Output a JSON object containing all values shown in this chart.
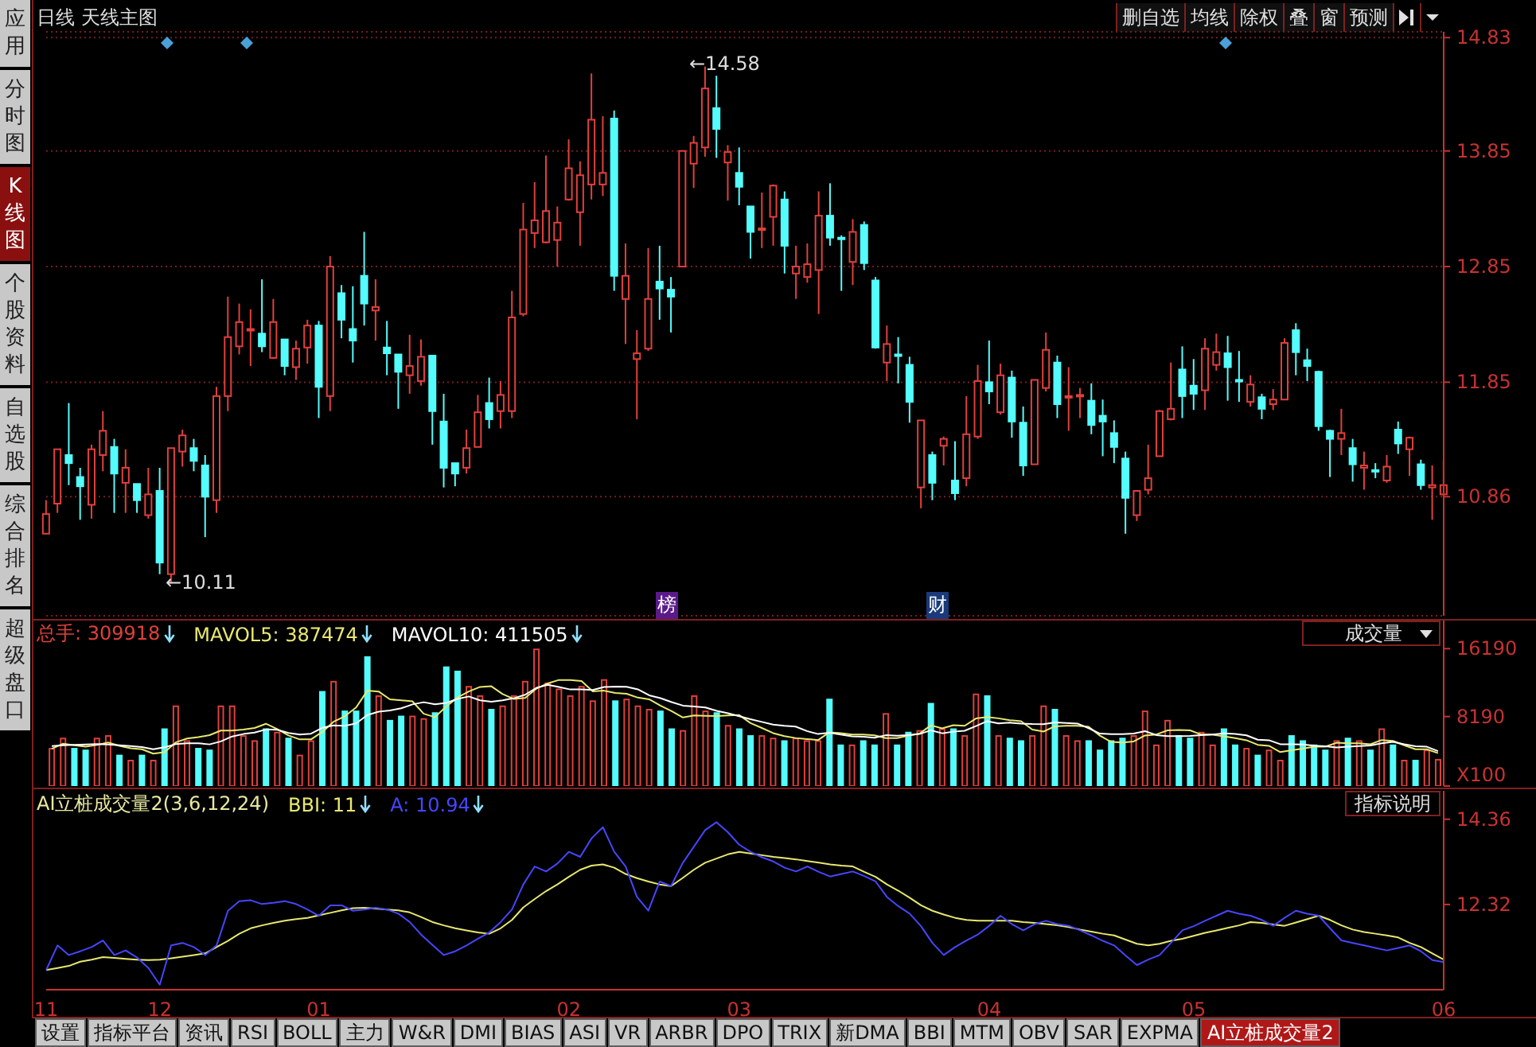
{
  "chart_data": [
    {
      "type": "other",
      "annotations": [
        "应用",
        "分时图",
        "K线图",
        "个股资料",
        "自选股",
        "综合排名",
        "超级盘口"
      ]
    },
    {
      "type": "other",
      "annotations": [
        "删自选",
        "均线",
        "除权",
        "叠",
        "窗",
        "预测"
      ]
    },
    {
      "type": "candlestick",
      "title": "日线 天线主图",
      "categories": [
        "11",
        null,
        null,
        null,
        null,
        null,
        null,
        null,
        null,
        null,
        "12",
        null,
        null,
        null,
        null,
        null,
        null,
        null,
        null,
        null,
        null,
        null,
        null,
        null,
        "01",
        null,
        null,
        null,
        null,
        null,
        null,
        null,
        null,
        null,
        null,
        null,
        null,
        null,
        null,
        null,
        null,
        null,
        null,
        null,
        null,
        null,
        "02",
        null,
        null,
        null,
        null,
        null,
        null,
        null,
        null,
        null,
        null,
        null,
        null,
        null,
        null,
        "03",
        null,
        null,
        null,
        null,
        null,
        null,
        null,
        null,
        null,
        null,
        null,
        null,
        null,
        null,
        null,
        null,
        null,
        null,
        null,
        null,
        null,
        "04",
        null,
        null,
        null,
        null,
        null,
        null,
        null,
        null,
        null,
        null,
        null,
        null,
        null,
        null,
        null,
        null,
        null,
        "05",
        null,
        null,
        null,
        null,
        null,
        null,
        null,
        null,
        null,
        null,
        null,
        null,
        null,
        null,
        null,
        null,
        null,
        null,
        null,
        null,
        null,
        "06"
      ],
      "ohlc": [
        [
          10.54,
          10.83,
          10.54,
          10.71
        ],
        [
          10.8,
          11.27,
          10.72,
          11.27
        ],
        [
          11.22,
          11.67,
          10.96,
          11.15
        ],
        [
          11.03,
          11.11,
          10.66,
          10.95
        ],
        [
          10.79,
          11.31,
          10.67,
          11.27
        ],
        [
          11.22,
          11.6,
          11.08,
          11.43
        ],
        [
          11.29,
          11.36,
          10.72,
          11.06
        ],
        [
          10.98,
          11.27,
          10.72,
          11.11
        ],
        [
          10.97,
          10.97,
          10.72,
          10.83
        ],
        [
          10.7,
          11.11,
          10.67,
          10.88
        ],
        [
          10.91,
          11.11,
          10.19,
          10.29
        ],
        [
          10.19,
          11.28,
          10.11,
          11.28
        ],
        [
          11.25,
          11.44,
          11.12,
          11.39
        ],
        [
          11.28,
          11.36,
          11.08,
          11.17
        ],
        [
          11.13,
          11.22,
          10.51,
          10.86
        ],
        [
          10.83,
          11.81,
          10.72,
          11.73
        ],
        [
          11.73,
          12.59,
          11.6,
          12.24
        ],
        [
          12.16,
          12.53,
          12.09,
          12.37
        ],
        [
          12.31,
          12.48,
          11.99,
          12.31
        ],
        [
          12.27,
          12.74,
          12.11,
          12.16
        ],
        [
          12.06,
          12.57,
          12.05,
          12.37
        ],
        [
          12.22,
          12.22,
          11.91,
          11.99
        ],
        [
          11.98,
          12.21,
          11.87,
          12.14
        ],
        [
          12.15,
          12.39,
          12.01,
          12.34
        ],
        [
          12.34,
          12.38,
          11.54,
          11.81
        ],
        [
          11.73,
          12.94,
          11.6,
          12.85
        ],
        [
          12.62,
          12.69,
          12.23,
          12.39
        ],
        [
          12.31,
          12.68,
          12.02,
          12.21
        ],
        [
          12.77,
          13.15,
          12.34,
          12.53
        ],
        [
          12.47,
          12.74,
          12.21,
          12.5
        ],
        [
          12.15,
          12.38,
          11.91,
          12.1
        ],
        [
          12.09,
          12.09,
          11.62,
          11.94
        ],
        [
          11.91,
          12.26,
          11.75,
          11.99
        ],
        [
          11.86,
          12.22,
          11.82,
          12.07
        ],
        [
          12.08,
          12.08,
          11.31,
          11.6
        ],
        [
          11.51,
          11.75,
          10.94,
          11.11
        ],
        [
          11.15,
          11.15,
          10.95,
          11.06
        ],
        [
          11.11,
          11.44,
          11.06,
          11.28
        ],
        [
          11.29,
          11.74,
          11.29,
          11.59
        ],
        [
          11.67,
          11.89,
          11.45,
          11.53
        ],
        [
          11.6,
          11.86,
          11.45,
          11.74
        ],
        [
          11.6,
          12.64,
          11.54,
          12.41
        ],
        [
          12.44,
          13.4,
          12.42,
          13.17
        ],
        [
          13.14,
          13.58,
          13.01,
          13.25
        ],
        [
          13.06,
          13.81,
          13.05,
          13.33
        ],
        [
          13.08,
          13.37,
          12.85,
          13.23
        ],
        [
          13.43,
          13.95,
          13.42,
          13.7
        ],
        [
          13.32,
          13.76,
          13.03,
          13.64
        ],
        [
          13.56,
          14.52,
          13.43,
          14.12
        ],
        [
          13.56,
          14.15,
          13.46,
          13.66
        ],
        [
          14.13,
          14.2,
          12.64,
          12.77
        ],
        [
          12.57,
          13.05,
          12.18,
          12.77
        ],
        [
          12.05,
          12.3,
          11.53,
          12.1
        ],
        [
          12.14,
          13.01,
          12.12,
          12.57
        ],
        [
          12.72,
          13.03,
          12.39,
          12.66
        ],
        [
          12.65,
          12.76,
          12.28,
          12.59
        ],
        [
          12.85,
          13.85,
          12.85,
          13.85
        ],
        [
          13.74,
          13.98,
          13.53,
          13.92
        ],
        [
          13.88,
          14.58,
          13.8,
          14.39
        ],
        [
          14.22,
          14.5,
          13.79,
          14.04
        ],
        [
          13.75,
          13.9,
          13.42,
          13.84
        ],
        [
          13.66,
          13.88,
          13.38,
          13.54
        ],
        [
          13.37,
          13.37,
          12.92,
          13.15
        ],
        [
          13.18,
          13.49,
          13.01,
          13.18
        ],
        [
          13.28,
          13.56,
          13.03,
          13.55
        ],
        [
          13.43,
          13.5,
          12.79,
          13.03
        ],
        [
          12.79,
          13.03,
          12.57,
          12.85
        ],
        [
          12.76,
          13.05,
          12.71,
          12.87
        ],
        [
          12.82,
          13.5,
          12.44,
          13.29
        ],
        [
          13.29,
          13.57,
          13.03,
          13.1
        ],
        [
          13.1,
          13.12,
          12.64,
          13.09
        ],
        [
          12.89,
          13.26,
          12.69,
          13.15
        ],
        [
          13.21,
          13.24,
          12.82,
          12.88
        ],
        [
          12.73,
          12.76,
          12.14,
          12.15
        ],
        [
          12.02,
          12.34,
          11.86,
          12.18
        ],
        [
          12.09,
          12.24,
          11.84,
          12.08
        ],
        [
          12.0,
          12.07,
          11.5,
          11.68
        ],
        [
          10.94,
          11.52,
          10.76,
          11.52
        ],
        [
          11.22,
          11.25,
          10.83,
          10.98
        ],
        [
          11.3,
          11.38,
          11.13,
          11.36
        ],
        [
          11.0,
          11.34,
          10.83,
          10.89
        ],
        [
          11.02,
          11.73,
          10.95,
          11.4
        ],
        [
          11.38,
          12.0,
          11.36,
          11.86
        ],
        [
          11.85,
          12.21,
          11.66,
          11.77
        ],
        [
          11.59,
          12.01,
          11.57,
          11.91
        ],
        [
          11.89,
          11.95,
          11.37,
          11.51
        ],
        [
          11.5,
          11.64,
          11.04,
          11.13
        ],
        [
          11.14,
          11.87,
          11.14,
          11.87
        ],
        [
          11.8,
          12.28,
          11.77,
          12.13
        ],
        [
          12.02,
          12.08,
          11.54,
          11.66
        ],
        [
          11.72,
          11.98,
          11.43,
          11.73
        ],
        [
          11.73,
          11.8,
          11.54,
          11.74
        ],
        [
          11.69,
          11.84,
          11.4,
          11.48
        ],
        [
          11.56,
          11.7,
          11.21,
          11.51
        ],
        [
          11.41,
          11.52,
          11.15,
          11.29
        ],
        [
          11.19,
          11.25,
          10.54,
          10.85
        ],
        [
          10.7,
          10.91,
          10.65,
          10.91
        ],
        [
          10.92,
          11.31,
          10.88,
          11.02
        ],
        [
          11.21,
          11.61,
          11.21,
          11.6
        ],
        [
          11.53,
          12.02,
          11.52,
          11.62
        ],
        [
          11.96,
          12.16,
          11.54,
          11.73
        ],
        [
          11.82,
          12.05,
          11.61,
          11.75
        ],
        [
          11.78,
          12.23,
          11.61,
          12.14
        ],
        [
          12.0,
          12.27,
          11.95,
          12.11
        ],
        [
          12.1,
          12.25,
          11.69,
          11.98
        ],
        [
          11.87,
          12.12,
          11.68,
          11.86
        ],
        [
          11.68,
          11.91,
          11.64,
          11.83
        ],
        [
          11.72,
          11.75,
          11.53,
          11.62
        ],
        [
          11.66,
          11.79,
          11.61,
          11.7
        ],
        [
          11.7,
          12.23,
          11.7,
          12.19
        ],
        [
          12.3,
          12.36,
          11.91,
          12.11
        ],
        [
          12.04,
          12.14,
          11.86,
          11.99
        ],
        [
          11.94,
          11.95,
          11.43,
          11.47
        ],
        [
          11.43,
          11.44,
          11.03,
          11.36
        ],
        [
          11.36,
          11.62,
          11.22,
          11.41
        ],
        [
          11.28,
          11.36,
          10.99,
          11.14
        ],
        [
          11.11,
          11.25,
          10.92,
          11.13
        ],
        [
          11.09,
          11.15,
          11.02,
          11.08
        ],
        [
          11.0,
          11.22,
          10.98,
          11.12
        ],
        [
          11.44,
          11.51,
          11.23,
          11.32
        ],
        [
          11.27,
          11.38,
          11.04,
          11.37
        ],
        [
          11.14,
          11.18,
          10.92,
          10.96
        ],
        [
          10.94,
          11.13,
          10.66,
          10.96
        ],
        [
          10.88,
          11.18,
          10.86,
          10.96
        ]
      ],
      "colors": [
        "#e0403c",
        "#e0403c",
        "#54fcfc",
        "#54fcfc",
        "#e0403c",
        "#e0403c",
        "#54fcfc",
        "#e0403c",
        "#54fcfc",
        "#e0403c",
        "#54fcfc",
        "#e0403c",
        "#e0403c",
        "#54fcfc",
        "#54fcfc",
        "#e0403c",
        "#e0403c",
        "#e0403c",
        "#e0403c",
        "#54fcfc",
        "#e0403c",
        "#54fcfc",
        "#e0403c",
        "#e0403c",
        "#54fcfc",
        "#e0403c",
        "#54fcfc",
        "#54fcfc",
        "#54fcfc",
        "#e0403c",
        "#54fcfc",
        "#54fcfc",
        "#e0403c",
        "#e0403c",
        "#54fcfc",
        "#54fcfc",
        "#54fcfc",
        "#e0403c",
        "#e0403c",
        "#54fcfc",
        "#e0403c",
        "#e0403c",
        "#e0403c",
        "#e0403c",
        "#e0403c",
        "#e0403c",
        "#e0403c",
        "#e0403c",
        "#e0403c",
        "#e0403c",
        "#54fcfc",
        "#e0403c",
        "#e0403c",
        "#e0403c",
        "#54fcfc",
        "#54fcfc",
        "#e0403c",
        "#e0403c",
        "#e0403c",
        "#54fcfc",
        "#e0403c",
        "#54fcfc",
        "#54fcfc",
        "#e0403c",
        "#e0403c",
        "#54fcfc",
        "#e0403c",
        "#e0403c",
        "#e0403c",
        "#54fcfc",
        "#54fcfc",
        "#e0403c",
        "#54fcfc",
        "#54fcfc",
        "#e0403c",
        "#54fcfc",
        "#54fcfc",
        "#e0403c",
        "#54fcfc",
        "#e0403c",
        "#54fcfc",
        "#e0403c",
        "#e0403c",
        "#54fcfc",
        "#e0403c",
        "#54fcfc",
        "#54fcfc",
        "#e0403c",
        "#e0403c",
        "#54fcfc",
        "#e0403c",
        "#e0403c",
        "#54fcfc",
        "#54fcfc",
        "#54fcfc",
        "#54fcfc",
        "#e0403c",
        "#e0403c",
        "#e0403c",
        "#e0403c",
        "#54fcfc",
        "#54fcfc",
        "#e0403c",
        "#e0403c",
        "#54fcfc",
        "#54fcfc",
        "#e0403c",
        "#54fcfc",
        "#e0403c",
        "#e0403c",
        "#54fcfc",
        "#54fcfc",
        "#54fcfc",
        "#54fcfc",
        "#e0403c",
        "#54fcfc",
        "#e0403c",
        "#54fcfc",
        "#e0403c",
        "#54fcfc",
        "#e0403c",
        "#54fcfc",
        "#e0403c",
        "#e0403c"
      ],
      "ylim": [
        9.83,
        14.88
      ],
      "yticks": [
        14.83,
        13.85,
        12.85,
        11.85,
        10.86
      ],
      "grid": "y",
      "tick_labels": "y",
      "annotations": [
        "←14.58",
        "←10.11",
        "榜",
        "财"
      ]
    },
    {
      "type": "bar",
      "categories": [
        "11",
        null,
        null,
        null,
        null,
        null,
        null,
        null,
        null,
        null,
        "12",
        null,
        null,
        null,
        null,
        null,
        null,
        null,
        null,
        null,
        null,
        null,
        null,
        null,
        "01",
        null,
        null,
        null,
        null,
        null,
        null,
        null,
        null,
        null,
        null,
        null,
        null,
        null,
        null,
        null,
        null,
        null,
        null,
        null,
        null,
        null,
        "02",
        null,
        null,
        null,
        null,
        null,
        null,
        null,
        null,
        null,
        null,
        null,
        null,
        null,
        null,
        "03",
        null,
        null,
        null,
        null,
        null,
        null,
        null,
        null,
        null,
        null,
        null,
        null,
        null,
        null,
        null,
        null,
        null,
        null,
        null,
        null,
        null,
        "04",
        null,
        null,
        null,
        null,
        null,
        null,
        null,
        null,
        null,
        null,
        null,
        null,
        null,
        null,
        null,
        null,
        null,
        "05",
        null,
        null,
        null,
        null,
        null,
        null,
        null,
        null,
        null,
        null,
        null,
        null,
        null,
        null,
        null,
        null,
        null,
        null,
        null,
        null,
        null,
        "06"
      ],
      "series": [
        {
          "name": "总手: 309918",
          "type": "bar",
          "color": "#e0403c",
          "colors": [
            "#e0403c",
            "#e0403c",
            "#54fcfc",
            "#54fcfc",
            "#e0403c",
            "#e0403c",
            "#54fcfc",
            "#e0403c",
            "#54fcfc",
            "#e0403c",
            "#54fcfc",
            "#e0403c",
            "#e0403c",
            "#54fcfc",
            "#54fcfc",
            "#e0403c",
            "#e0403c",
            "#e0403c",
            "#e0403c",
            "#54fcfc",
            "#e0403c",
            "#54fcfc",
            "#e0403c",
            "#e0403c",
            "#54fcfc",
            "#e0403c",
            "#54fcfc",
            "#54fcfc",
            "#54fcfc",
            "#e0403c",
            "#54fcfc",
            "#54fcfc",
            "#e0403c",
            "#e0403c",
            "#54fcfc",
            "#54fcfc",
            "#54fcfc",
            "#e0403c",
            "#e0403c",
            "#54fcfc",
            "#e0403c",
            "#e0403c",
            "#e0403c",
            "#e0403c",
            "#e0403c",
            "#e0403c",
            "#e0403c",
            "#e0403c",
            "#e0403c",
            "#e0403c",
            "#54fcfc",
            "#e0403c",
            "#e0403c",
            "#e0403c",
            "#54fcfc",
            "#54fcfc",
            "#e0403c",
            "#e0403c",
            "#e0403c",
            "#54fcfc",
            "#e0403c",
            "#54fcfc",
            "#54fcfc",
            "#e0403c",
            "#e0403c",
            "#54fcfc",
            "#e0403c",
            "#e0403c",
            "#e0403c",
            "#54fcfc",
            "#54fcfc",
            "#e0403c",
            "#54fcfc",
            "#54fcfc",
            "#e0403c",
            "#54fcfc",
            "#54fcfc",
            "#e0403c",
            "#54fcfc",
            "#e0403c",
            "#54fcfc",
            "#e0403c",
            "#e0403c",
            "#54fcfc",
            "#e0403c",
            "#54fcfc",
            "#54fcfc",
            "#e0403c",
            "#e0403c",
            "#54fcfc",
            "#e0403c",
            "#e0403c",
            "#54fcfc",
            "#54fcfc",
            "#54fcfc",
            "#54fcfc",
            "#e0403c",
            "#e0403c",
            "#e0403c",
            "#e0403c",
            "#54fcfc",
            "#54fcfc",
            "#e0403c",
            "#e0403c",
            "#54fcfc",
            "#54fcfc",
            "#e0403c",
            "#54fcfc",
            "#e0403c",
            "#e0403c",
            "#54fcfc",
            "#54fcfc",
            "#54fcfc",
            "#54fcfc",
            "#e0403c",
            "#54fcfc",
            "#e0403c",
            "#54fcfc",
            "#e0403c",
            "#54fcfc",
            "#e0403c",
            "#54fcfc",
            "#e0403c",
            "#e0403c"
          ],
          "values": [
            4400,
            5600,
            4400,
            4200,
            5600,
            5900,
            3600,
            3000,
            3600,
            3000,
            6700,
            9400,
            5300,
            4400,
            4200,
            9400,
            9400,
            5900,
            5300,
            6700,
            6300,
            5600,
            3600,
            5300,
            11100,
            12300,
            8800,
            8800,
            15200,
            10600,
            7700,
            8200,
            8200,
            7900,
            8600,
            14000,
            13500,
            11700,
            10600,
            9000,
            9400,
            10600,
            12300,
            16100,
            12100,
            11400,
            10600,
            11700,
            10000,
            12500,
            10000,
            10200,
            9400,
            9000,
            8800,
            6700,
            6500,
            10600,
            8800,
            8600,
            7100,
            6700,
            5900,
            5900,
            5600,
            5300,
            5600,
            5300,
            5300,
            10200,
            4800,
            4800,
            5300,
            4800,
            8500,
            4800,
            6300,
            6500,
            9700,
            6700,
            6700,
            5900,
            10800,
            10600,
            5900,
            5600,
            5300,
            5900,
            9400,
            9000,
            5900,
            5300,
            5300,
            4200,
            5300,
            5600,
            5900,
            8800,
            4800,
            7700,
            5900,
            5600,
            6300,
            4800,
            6700,
            4800,
            4400,
            3600,
            4200,
            3000,
            5900,
            5300,
            4800,
            4200,
            5300,
            5600,
            5300,
            4200,
            6700,
            4800,
            3000,
            3000,
            4200,
            3099
          ]
        },
        {
          "name": "MAVOL5: 387474",
          "type": "line",
          "color": "#e8e870",
          "values": [
            4400,
            5000,
            4800,
            4650,
            4840,
            5140,
            4740,
            4460,
            4340,
            3820,
            3980,
            5140,
            5600,
            5760,
            6000,
            6540,
            6540,
            6660,
            6840,
            7340,
            6720,
            5960,
            5500,
            5500,
            6380,
            7580,
            8220,
            9260,
            11240,
            11140,
            10220,
            10100,
            9980,
            8520,
            8120,
            9380,
            10440,
            11140,
            11680,
            11760,
            10840,
            10260,
            10380,
            11480,
            12100,
            12500,
            12500,
            12380,
            11160,
            11240,
            10960,
            10880,
            10420,
            10220,
            9480,
            8820,
            8080,
            8320,
            8280,
            8240,
            8320,
            8360,
            7420,
            6840,
            6240,
            5880,
            5660,
            5540,
            5420,
            6340,
            6240,
            6080,
            6080,
            5980,
            5640,
            5640,
            5940,
            6180,
            7160,
            6800,
            7180,
            7100,
            7960,
            8140,
            7980,
            7760,
            7640,
            6660,
            6420,
            7040,
            7100,
            7100,
            6980,
            5940,
            5200,
            5140,
            5260,
            5960,
            6080,
            6560,
            6620,
            6560,
            6060,
            6060,
            5860,
            5640,
            5400,
            4860,
            4740,
            4000,
            4220,
            4400,
            4640,
            4640,
            5100,
            5040,
            5040,
            4920,
            5420,
            5320,
            4800,
            4340,
            4340,
            3875
          ]
        },
        {
          "name": "MAVOL10: 411505",
          "type": "line",
          "color": "#ffffff",
          "values": [
            4700,
            4800,
            4850,
            4900,
            4950,
            4900,
            4800,
            4700,
            4600,
            4330,
            4560,
            4940,
            5030,
            5050,
            4910,
            5260,
            5840,
            6130,
            6300,
            6670,
            6630,
            6250,
            6080,
            6170,
            6860,
            7150,
            7090,
            7380,
            8370,
            8760,
            8900,
            9160,
            9620,
            9880,
            9630,
            9800,
            10270,
            10560,
            10100,
            9940,
            10110,
            10350,
            10760,
            11580,
            11930,
            11670,
            11380,
            11380,
            11320,
            11670,
            11730,
            11690,
            11400,
            10690,
            10360,
            9890,
            9480,
            9370,
            9250,
            8860,
            8570,
            8220,
            7870,
            7560,
            7240,
            7100,
            7010,
            6480,
            6130,
            6290,
            6060,
            5870,
            5810,
            5700,
            5990,
            5940,
            6010,
            6130,
            6570,
            6220,
            6410,
            6520,
            7070,
            7650,
            7390,
            7470,
            7370,
            7310,
            7280,
            7510,
            7430,
            7370,
            6820,
            6180,
            6120,
            6120,
            6180,
            6470,
            6010,
            5880,
            5880,
            5910,
            6010,
            6070,
            6210,
            6130,
            5980,
            5460,
            5400,
            4930,
            4930,
            4900,
            4750,
            4690,
            4550,
            4630,
            4720,
            4780,
            5030,
            5210,
            4920,
            4690,
            4630,
            4115
          ]
        }
      ],
      "ylim": [
        0,
        19500
      ],
      "yticks": [
        16190,
        8190,
        {
          "value": 0,
          "label": "X100"
        }
      ],
      "tick_labels": "y",
      "legend": "top left",
      "annotations": [
        "成交量"
      ]
    },
    {
      "type": "line",
      "title": "AI立桩成交量2(3,6,12,24)",
      "categories": [
        "11",
        null,
        null,
        null,
        null,
        null,
        null,
        null,
        null,
        null,
        "12",
        null,
        null,
        null,
        null,
        null,
        null,
        null,
        null,
        null,
        null,
        null,
        null,
        null,
        "01",
        null,
        null,
        null,
        null,
        null,
        null,
        null,
        null,
        null,
        null,
        null,
        null,
        null,
        null,
        null,
        null,
        null,
        null,
        null,
        null,
        null,
        "02",
        null,
        null,
        null,
        null,
        null,
        null,
        null,
        null,
        null,
        null,
        null,
        null,
        null,
        null,
        "03",
        null,
        null,
        null,
        null,
        null,
        null,
        null,
        null,
        null,
        null,
        null,
        null,
        null,
        null,
        null,
        null,
        null,
        null,
        null,
        null,
        null,
        "04",
        null,
        null,
        null,
        null,
        null,
        null,
        null,
        null,
        null,
        null,
        null,
        null,
        null,
        null,
        null,
        null,
        null,
        "05",
        null,
        null,
        null,
        null,
        null,
        null,
        null,
        null,
        null,
        null,
        null,
        null,
        null,
        null,
        null,
        null,
        null,
        null,
        null,
        null,
        null,
        "06"
      ],
      "series": [
        {
          "name": "BBI: 11",
          "color": "#e8e870",
          "values": [
            10.75,
            10.8,
            10.85,
            10.95,
            11.0,
            11.06,
            11.04,
            11.02,
            11.0,
            10.99,
            11.0,
            11.03,
            11.07,
            11.11,
            11.15,
            11.3,
            11.45,
            11.62,
            11.75,
            11.82,
            11.88,
            11.93,
            11.97,
            12.0,
            12.06,
            12.12,
            12.18,
            12.23,
            12.24,
            12.22,
            12.2,
            12.18,
            12.13,
            12.02,
            11.9,
            11.82,
            11.75,
            11.7,
            11.65,
            11.62,
            11.75,
            11.95,
            12.25,
            12.45,
            12.64,
            12.8,
            12.98,
            13.15,
            13.25,
            13.28,
            13.2,
            13.05,
            12.95,
            12.87,
            12.8,
            12.76,
            12.95,
            13.15,
            13.32,
            13.42,
            13.52,
            13.58,
            13.54,
            13.5,
            13.46,
            13.43,
            13.4,
            13.36,
            13.32,
            13.28,
            13.25,
            13.23,
            13.1,
            12.98,
            12.8,
            12.65,
            12.48,
            12.3,
            12.17,
            12.08,
            12.0,
            11.95,
            11.93,
            11.93,
            11.93,
            11.93,
            11.9,
            11.88,
            11.85,
            11.82,
            11.78,
            11.72,
            11.67,
            11.62,
            11.58,
            11.48,
            11.38,
            11.34,
            11.38,
            11.45,
            11.5,
            11.57,
            11.64,
            11.7,
            11.76,
            11.82,
            11.9,
            11.88,
            11.84,
            11.81,
            11.89,
            11.97,
            12.05,
            11.95,
            11.82,
            11.72,
            11.66,
            11.62,
            11.58,
            11.53,
            11.4,
            11.3,
            11.15,
            11.0
          ]
        },
        {
          "name": "A: 10.94",
          "color": "#4646ff",
          "values": [
            10.75,
            11.34,
            11.11,
            11.2,
            11.3,
            11.46,
            11.11,
            11.22,
            11.05,
            10.8,
            10.4,
            11.34,
            11.4,
            11.3,
            11.11,
            11.34,
            12.17,
            12.4,
            12.42,
            12.33,
            12.36,
            12.4,
            12.33,
            12.2,
            12.05,
            12.3,
            12.3,
            12.17,
            12.2,
            12.24,
            12.2,
            12.1,
            11.9,
            11.6,
            11.35,
            11.11,
            11.2,
            11.34,
            11.5,
            11.65,
            11.9,
            12.2,
            12.8,
            13.23,
            13.11,
            13.3,
            13.58,
            13.46,
            13.9,
            14.17,
            13.58,
            13.23,
            12.5,
            12.17,
            12.87,
            12.76,
            13.3,
            13.7,
            14.1,
            14.29,
            14.05,
            13.75,
            13.58,
            13.45,
            13.35,
            13.2,
            13.11,
            13.23,
            13.1,
            12.99,
            13.05,
            13.11,
            13.0,
            12.87,
            12.5,
            12.28,
            12.1,
            11.8,
            11.4,
            11.11,
            11.3,
            11.46,
            11.6,
            11.81,
            12.05,
            11.85,
            11.7,
            11.85,
            11.93,
            11.85,
            11.81,
            11.7,
            11.58,
            11.45,
            11.34,
            11.1,
            10.87,
            11.0,
            11.11,
            11.4,
            11.7,
            11.8,
            11.93,
            12.05,
            12.17,
            12.1,
            12.05,
            11.95,
            11.81,
            12.0,
            12.17,
            12.1,
            12.05,
            11.75,
            11.46,
            11.4,
            11.34,
            11.28,
            11.22,
            11.28,
            11.34,
            11.2,
            10.99,
            10.94
          ]
        }
      ],
      "ylim": [
        10.28,
        15.04
      ],
      "yticks": [
        14.36,
        12.32
      ],
      "legend": "top left",
      "annotations": [
        "指标说明"
      ]
    },
    {
      "type": "other",
      "annotations": [
        "设置",
        "指标平台",
        "资讯",
        "RSI",
        "BOLL",
        "主力",
        "W&R",
        "DMI",
        "BIAS",
        "ASI",
        "VR",
        "ARBR",
        "DPO",
        "TRIX",
        "新DMA",
        "BBI",
        "MTM",
        "OBV",
        "SAR",
        "EXPMA",
        "AI立桩成交量2"
      ]
    }
  ]
}
